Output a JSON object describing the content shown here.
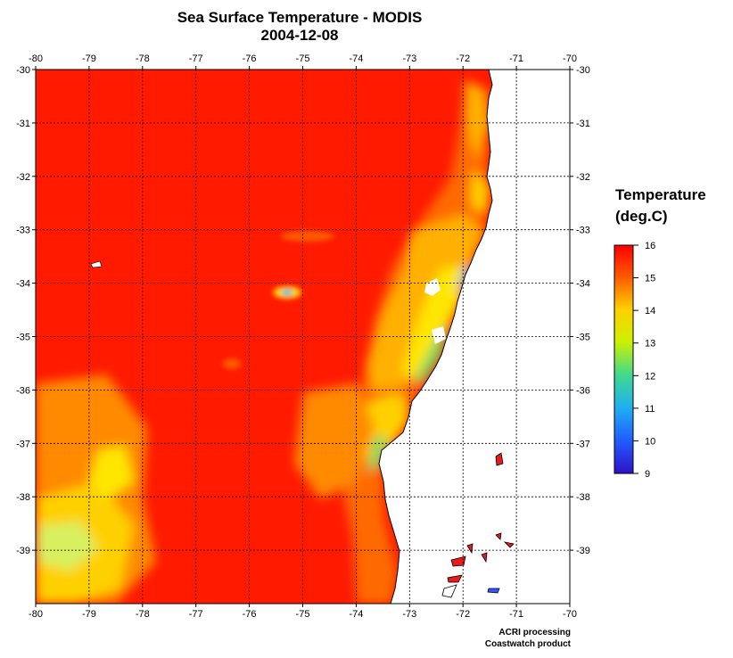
{
  "title": "Sea Surface Temperature - MODIS",
  "date": "2004-12-08",
  "legend": {
    "title_line1": "Temperature",
    "title_line2": "(deg.C)",
    "ticks": [
      "16",
      "15",
      "14",
      "13",
      "12",
      "11",
      "10",
      "9"
    ],
    "min": 9,
    "max": 16
  },
  "axes": {
    "lon_ticks": [
      "-80",
      "-79",
      "-78",
      "-77",
      "-76",
      "-75",
      "-74",
      "-73",
      "-72",
      "-71",
      "-70"
    ],
    "lat_ticks": [
      "-30",
      "-31",
      "-32",
      "-33",
      "-34",
      "-35",
      "-36",
      "-37",
      "-38",
      "-39"
    ],
    "lon_range": [
      -80,
      -70
    ],
    "lat_range": [
      -40,
      -30
    ],
    "grid": true
  },
  "colors": {
    "warm": "#ff1a00",
    "orange": "#ff6a00",
    "yellow": "#ffe600",
    "green": "#7fd860",
    "cyan": "#33b6e6",
    "land": "#ffffff",
    "island": "#e81a1a",
    "lake": "#3355ff"
  },
  "credit": {
    "line1": "ACRI processing",
    "line2": "Coastwatch product"
  }
}
